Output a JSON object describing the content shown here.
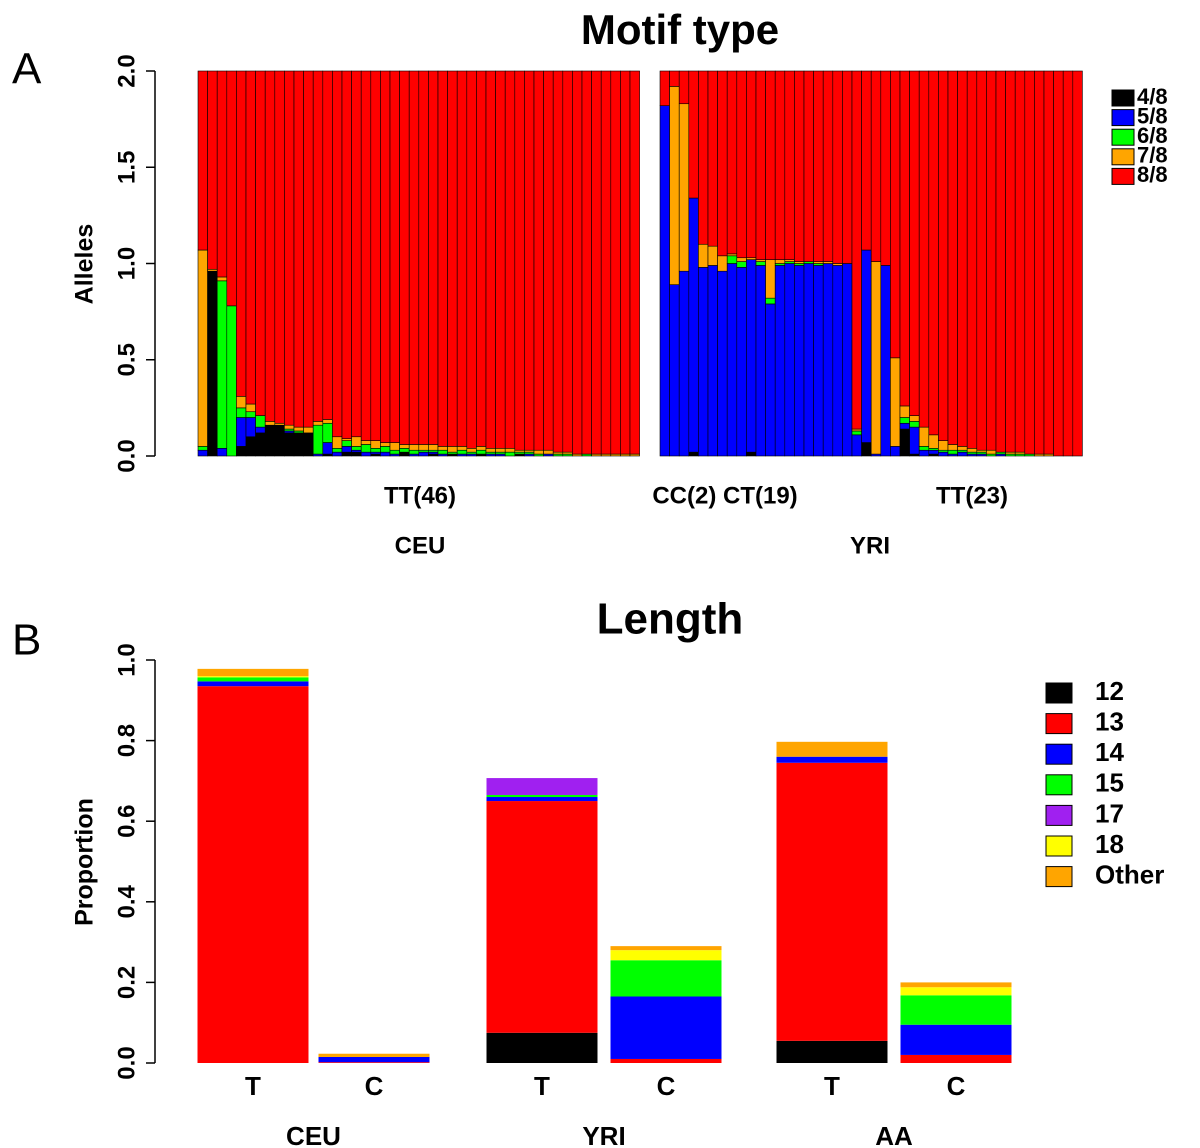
{
  "chart_data": [
    {
      "type": "bar",
      "stacked": true,
      "panel_label": "A",
      "title": "Motif type",
      "y_label": "Alleles",
      "facets": [
        "CEU",
        "YRI"
      ],
      "facet_labels": [
        "TT(46)",
        "CC(2) CT(19)",
        "TT(23)"
      ],
      "ylim": [
        0,
        2
      ],
      "yticks": [
        {
          "value": 0,
          "label": "0.0"
        },
        {
          "value": 0.5,
          "label": "0.5"
        },
        {
          "value": 1,
          "label": "1.0"
        },
        {
          "value": 1.5,
          "label": "1.5"
        },
        {
          "value": 2,
          "label": "2.0"
        }
      ],
      "series": [
        {
          "name": "4/8",
          "color": "#000000",
          "values": [
            [
              0,
              0.96,
              0,
              0,
              0.05,
              0.1,
              0.12,
              0.16,
              0.16,
              0.12,
              0.12,
              0.12,
              0,
              0.01,
              0,
              0.02,
              0.02,
              0,
              0.01,
              0,
              0,
              0.02,
              0,
              0,
              0.01,
              0,
              0.01,
              0,
              0,
              0.01,
              0,
              0,
              0,
              0.01,
              0,
              0,
              0,
              0,
              0,
              0,
              0,
              0,
              0,
              0,
              0,
              0
            ],
            [
              0,
              0,
              0,
              0.02,
              0,
              0,
              0,
              0,
              0,
              0.02,
              0,
              0,
              0,
              0,
              0,
              0,
              0,
              0,
              0,
              0,
              0,
              0.07,
              0,
              0,
              0,
              0.14,
              0.01,
              0,
              0.01,
              0,
              0,
              0,
              0,
              0,
              0,
              0,
              0,
              0,
              0,
              0,
              0,
              0,
              0,
              0
            ]
          ]
        },
        {
          "name": "5/8",
          "color": "#0000ff",
          "values": [
            [
              0.03,
              0,
              0.04,
              0,
              0.15,
              0.1,
              0.03,
              0,
              0,
              0.01,
              0,
              0,
              0.01,
              0.06,
              0.02,
              0.03,
              0.01,
              0.02,
              0.01,
              0.02,
              0.01,
              0,
              0.01,
              0.02,
              0.01,
              0.01,
              0,
              0.01,
              0.01,
              0,
              0.01,
              0.01,
              0,
              0,
              0.01,
              0,
              0.01,
              0,
              0,
              0,
              0,
              0,
              0,
              0,
              0,
              0
            ],
            [
              1.82,
              0.89,
              0.96,
              1.32,
              0.98,
              0.99,
              0.96,
              1.0,
              0.98,
              1.0,
              0.99,
              0.79,
              0.99,
              1.0,
              0.99,
              1.0,
              0.99,
              1.0,
              0.99,
              1.0,
              0.11,
              1.0,
              0.01,
              0.99,
              0.05,
              0.03,
              0.14,
              0.03,
              0.02,
              0.02,
              0.01,
              0.02,
              0.01,
              0.01,
              0,
              0.01,
              0,
              0,
              0,
              0,
              0,
              0,
              0,
              0
            ]
          ]
        },
        {
          "name": "6/8",
          "color": "#00ff00",
          "values": [
            [
              0.02,
              0,
              0.87,
              0.78,
              0.05,
              0.03,
              0.06,
              0,
              0,
              0.01,
              0.01,
              0,
              0.15,
              0.1,
              0.02,
              0.03,
              0.02,
              0.04,
              0.02,
              0.03,
              0.02,
              0.02,
              0.02,
              0.01,
              0.01,
              0.02,
              0.01,
              0.02,
              0.01,
              0.02,
              0.01,
              0.01,
              0.02,
              0.01,
              0.01,
              0.01,
              0,
              0.01,
              0.01,
              0,
              0.01,
              0,
              0,
              0,
              0,
              0
            ],
            [
              0,
              0,
              0,
              0,
              0,
              0,
              0,
              0.04,
              0.03,
              0,
              0.02,
              0.03,
              0.01,
              0.01,
              0.01,
              0.01,
              0.01,
              0,
              0,
              0,
              0.02,
              0,
              0,
              0,
              0,
              0.03,
              0.03,
              0.02,
              0.01,
              0.01,
              0.02,
              0.01,
              0.01,
              0.01,
              0.01,
              0.01,
              0.01,
              0.01,
              0.01,
              0,
              0,
              0,
              0,
              0
            ]
          ]
        },
        {
          "name": "7/8",
          "color": "#ffa500",
          "values": [
            [
              1.02,
              0.01,
              0.02,
              0,
              0.06,
              0.04,
              0,
              0.02,
              0.01,
              0.02,
              0.02,
              0.03,
              0.02,
              0.02,
              0.06,
              0.01,
              0.05,
              0.02,
              0.04,
              0.02,
              0.04,
              0.02,
              0.03,
              0.03,
              0.03,
              0.02,
              0.03,
              0.02,
              0.02,
              0.02,
              0.02,
              0.02,
              0.02,
              0.01,
              0.01,
              0.02,
              0.02,
              0.01,
              0.01,
              0.01,
              0,
              0.01,
              0.01,
              0.01,
              0.01,
              0.01
            ],
            [
              0,
              1.03,
              0.87,
              0,
              0.12,
              0.1,
              0.08,
              0.01,
              0.02,
              0.01,
              0.01,
              0.2,
              0.02,
              0.01,
              0.01,
              0,
              0.01,
              0.01,
              0.01,
              0,
              0.01,
              0,
              1.0,
              0,
              0.46,
              0.06,
              0.03,
              0.1,
              0.07,
              0.05,
              0.03,
              0.02,
              0.02,
              0.01,
              0.02,
              0,
              0.01,
              0.01,
              0,
              0.01,
              0.01,
              0,
              0,
              0
            ]
          ]
        },
        {
          "name": "8/8",
          "color": "#ff0000",
          "values": [
            [
              0.93,
              1.03,
              1.07,
              1.22,
              1.69,
              1.73,
              1.79,
              1.82,
              1.83,
              1.84,
              1.85,
              1.85,
              1.82,
              1.81,
              1.9,
              1.91,
              1.9,
              1.92,
              1.92,
              1.93,
              1.93,
              1.94,
              1.94,
              1.94,
              1.94,
              1.95,
              1.95,
              1.95,
              1.96,
              1.95,
              1.96,
              1.96,
              1.96,
              1.97,
              1.97,
              1.97,
              1.97,
              1.98,
              1.98,
              1.99,
              1.99,
              1.99,
              1.99,
              1.99,
              1.99,
              1.99
            ],
            [
              0.18,
              0.08,
              0.17,
              0.66,
              0.9,
              0.91,
              0.96,
              0.95,
              0.97,
              0.97,
              0.98,
              0.98,
              0.98,
              0.98,
              0.99,
              0.99,
              0.99,
              0.99,
              1.0,
              1.0,
              1.86,
              0.93,
              0.99,
              1.01,
              1.49,
              1.74,
              1.79,
              1.85,
              1.89,
              1.92,
              1.94,
              1.95,
              1.96,
              1.97,
              1.97,
              1.98,
              1.98,
              1.98,
              1.99,
              1.99,
              1.99,
              2.0,
              2.0,
              2.0
            ]
          ]
        }
      ]
    },
    {
      "type": "bar",
      "stacked": true,
      "panel_label": "B",
      "title": "Length",
      "y_label": "Proportion",
      "categories": [
        "T",
        "C",
        "T",
        "C",
        "T",
        "C"
      ],
      "groups": [
        "CEU",
        "YRI",
        "AA"
      ],
      "ylim": [
        0,
        1
      ],
      "yticks": [
        {
          "value": 0,
          "label": "0.0"
        },
        {
          "value": 0.2,
          "label": "0.2"
        },
        {
          "value": 0.4,
          "label": "0.4"
        },
        {
          "value": 0.6,
          "label": "0.6"
        },
        {
          "value": 0.8,
          "label": "0.8"
        },
        {
          "value": 1,
          "label": "1.0"
        }
      ],
      "series": [
        {
          "name": "12",
          "color": "#000000",
          "values": [
            0,
            0,
            0.075,
            0,
            0.055,
            0
          ]
        },
        {
          "name": "13",
          "color": "#ff0000",
          "values": [
            0.935,
            0.002,
            0.575,
            0.01,
            0.69,
            0.02
          ]
        },
        {
          "name": "14",
          "color": "#0000ff",
          "values": [
            0.012,
            0.013,
            0.01,
            0.155,
            0.015,
            0.075
          ]
        },
        {
          "name": "15",
          "color": "#00ff00",
          "values": [
            0.01,
            0,
            0.005,
            0.09,
            0,
            0.073
          ]
        },
        {
          "name": "17",
          "color": "#a020f0",
          "values": [
            0,
            0,
            0.042,
            0,
            0,
            0
          ]
        },
        {
          "name": "18",
          "color": "#ffff00",
          "values": [
            0.003,
            0,
            0,
            0.025,
            0,
            0.02
          ]
        },
        {
          "name": "Other",
          "color": "#ffa500",
          "values": [
            0.018,
            0.008,
            0,
            0.01,
            0.037,
            0.012
          ]
        }
      ]
    }
  ]
}
